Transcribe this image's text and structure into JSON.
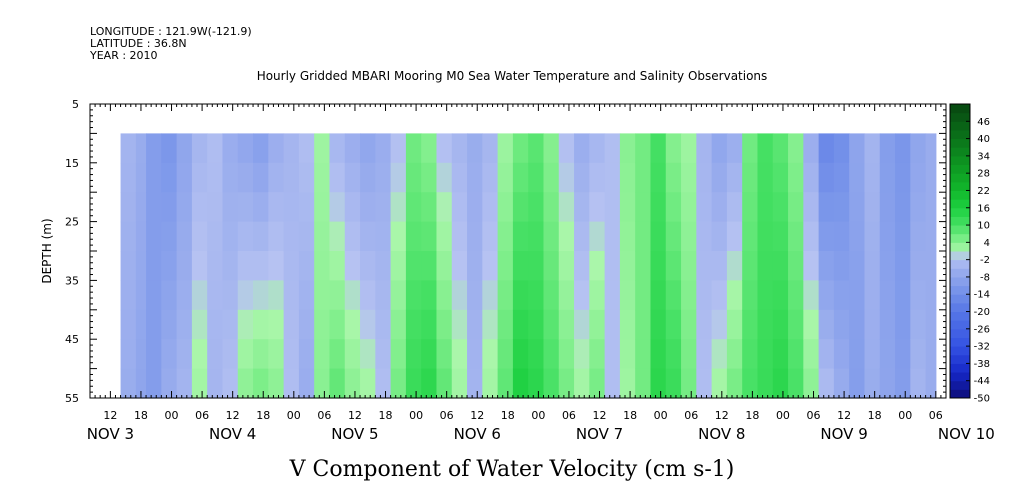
{
  "header": {
    "longitude": "LONGITUDE : 121.9W(-121.9)",
    "latitude": "LATITUDE : 36.8N",
    "year": "YEAR : 2010"
  },
  "title": "Hourly Gridded MBARI Mooring M0 Sea Water Temperature and Salinity Observations",
  "chart_data": {
    "type": "heatmap",
    "title": "Hourly Gridded MBARI Mooring M0 Sea Water Temperature and Salinity Observations",
    "xlabel": "V Component of Water Velocity (cm s-1)",
    "ylabel": "DEPTH (m)",
    "x_hour_range": [
      8,
      176
    ],
    "y_range": [
      5,
      55
    ],
    "y_inverted": true,
    "data_depth_range": [
      10,
      55
    ],
    "data_start_hour": 14,
    "data_end_hour": 174,
    "y_ticks": [
      "5",
      "15",
      "25",
      "35",
      "45",
      "55"
    ],
    "x_hour_tick_labels": [
      "12",
      "18",
      "00",
      "06",
      "12",
      "18",
      "00",
      "06",
      "12",
      "18",
      "00",
      "06",
      "12",
      "18",
      "00",
      "06",
      "12",
      "18",
      "00",
      "06",
      "12",
      "18",
      "00",
      "06",
      "12",
      "18",
      "00",
      "06"
    ],
    "day_labels": [
      "NOV  3",
      "NOV  4",
      "NOV  5",
      "NOV  6",
      "NOV  7",
      "NOV  8",
      "NOV  9",
      "NOV 10"
    ],
    "colorbar": {
      "labels": [
        "46",
        "40",
        "34",
        "28",
        "22",
        "16",
        "10",
        "4",
        "-2",
        "-8",
        "-14",
        "-20",
        "-26",
        "-32",
        "-38",
        "-44",
        "-50"
      ],
      "range": [
        -50,
        52
      ],
      "interval": 3
    },
    "profile_hours": [
      14,
      17,
      19,
      22,
      25,
      28,
      31,
      34,
      37,
      40,
      43,
      46,
      49,
      52,
      55,
      58,
      61,
      64,
      67,
      70,
      73,
      76,
      79,
      82,
      85,
      88,
      91,
      94,
      97,
      100,
      103,
      106,
      109,
      112,
      115,
      118,
      121,
      124,
      127,
      130,
      133,
      136,
      139,
      142,
      145,
      148,
      151,
      154,
      157,
      160,
      163,
      166,
      169,
      172,
      174
    ],
    "profile_top_values": [
      -4,
      -6,
      -10,
      -12,
      -8,
      -4,
      -2,
      -6,
      -8,
      -10,
      -6,
      -4,
      -2,
      2,
      -4,
      -6,
      -8,
      -6,
      -2,
      6,
      4,
      -2,
      -4,
      -6,
      -4,
      2,
      6,
      8,
      4,
      -2,
      -6,
      -4,
      -2,
      4,
      6,
      10,
      4,
      2,
      -4,
      -8,
      -6,
      6,
      10,
      8,
      4,
      -6,
      -16,
      -14,
      -8,
      -4,
      -10,
      -12,
      -8,
      -6,
      -4
    ],
    "profile_bottom_values": [
      -6,
      -8,
      -10,
      -6,
      -4,
      2,
      -4,
      -2,
      4,
      6,
      4,
      -2,
      -6,
      4,
      8,
      4,
      2,
      -2,
      6,
      12,
      14,
      8,
      2,
      -4,
      2,
      8,
      16,
      14,
      10,
      6,
      2,
      6,
      -2,
      2,
      6,
      14,
      12,
      6,
      -2,
      2,
      6,
      10,
      12,
      14,
      10,
      4,
      -2,
      -6,
      -10,
      -6,
      -8,
      -10,
      -4,
      -6,
      -8
    ]
  }
}
